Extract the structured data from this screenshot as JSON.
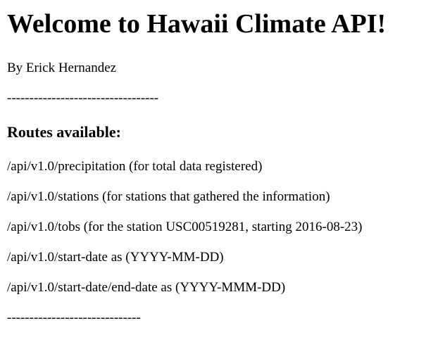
{
  "page": {
    "title": "Welcome to Hawaii Climate API!",
    "author": "By Erick Hernandez",
    "divider_top": "----------------------------------",
    "routes_heading": "Routes available:",
    "routes": [
      "/api/v1.0/precipitation (for total data registered)",
      "/api/v1.0/stations (for stations that gathered the information)",
      "/api/v1.0/tobs (for the station USC00519281, starting 2016-08-23)",
      "/api/v1.0/start-date as (YYYY-MM-DD)",
      "/api/v1.0/start-date/end-date as (YYYY-MMM-DD)"
    ],
    "divider_bottom": "------------------------------"
  }
}
